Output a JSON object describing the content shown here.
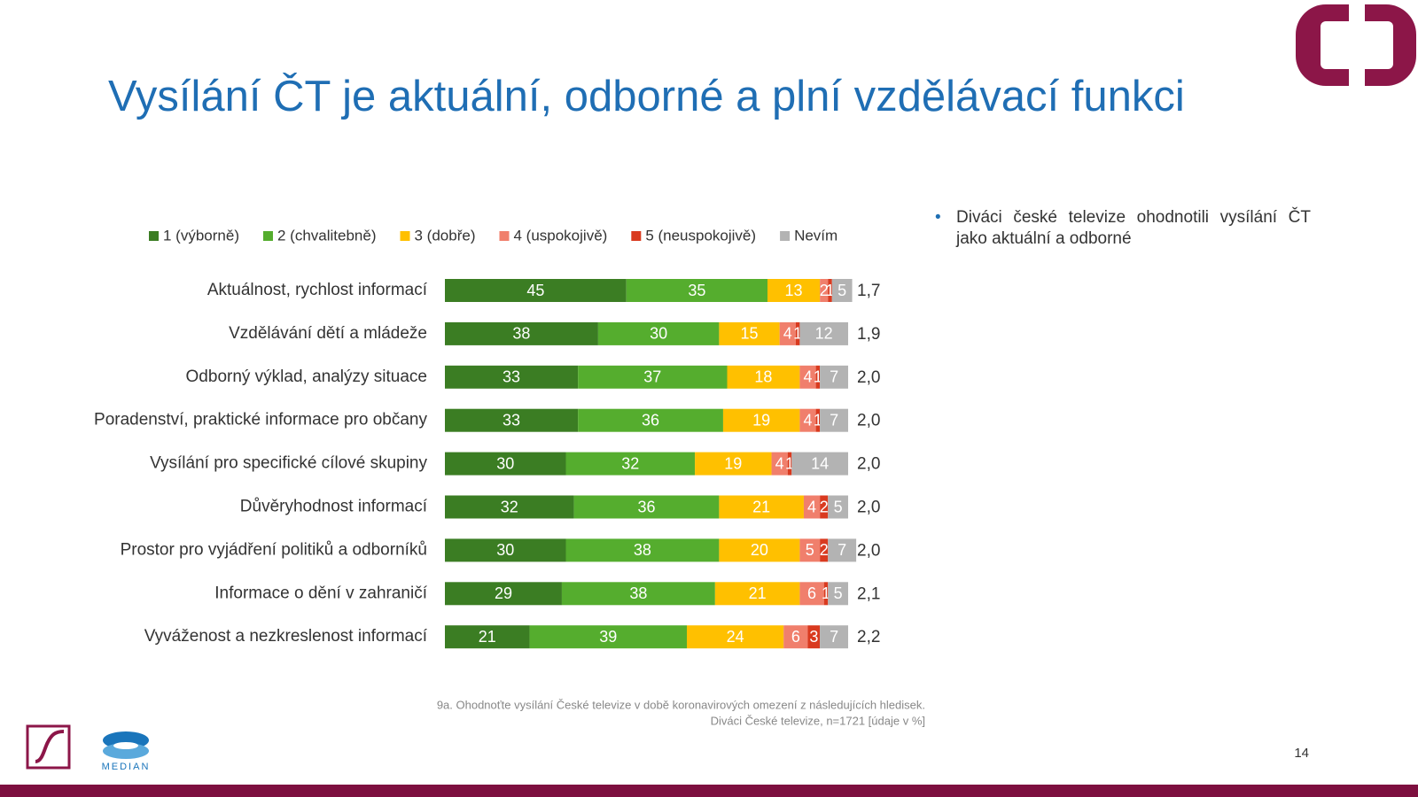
{
  "chart_data": {
    "type": "stacked-bar",
    "orientation": "horizontal",
    "title": "Vysílání ČT je aktuální, odborné a plní vzdělávací funkci",
    "categories": [
      "Aktuálnost, rychlost informací",
      "Vzdělávání dětí a mládeže",
      "Odborný výklad, analýzy situace",
      "Poradenství, praktické informace pro občany",
      "Vysílání pro specifické cílové skupiny",
      "Důvěryhodnost informací",
      "Prostor pro vyjádření politiků a odborníků",
      "Informace o dění v zahraničí",
      "Vyváženost a nezkreslenost informací"
    ],
    "series": [
      {
        "name": "1 (výborně)",
        "color": "#3b7d23",
        "values": [
          45,
          38,
          33,
          33,
          30,
          32,
          30,
          29,
          21
        ]
      },
      {
        "name": "2 (chvalitebně)",
        "color": "#55ad2e",
        "values": [
          35,
          30,
          37,
          36,
          32,
          36,
          38,
          38,
          39
        ]
      },
      {
        "name": "3 (dobře)",
        "color": "#ffc000",
        "values": [
          13,
          15,
          18,
          19,
          19,
          21,
          20,
          21,
          24
        ]
      },
      {
        "name": "4 (uspokojivě)",
        "color": "#f07f6c",
        "values": [
          2,
          4,
          4,
          4,
          4,
          4,
          5,
          6,
          6
        ]
      },
      {
        "name": "5 (neuspokojivě)",
        "color": "#d93a1f",
        "values": [
          1,
          1,
          1,
          1,
          1,
          2,
          2,
          1,
          3
        ]
      },
      {
        "name": "Nevím",
        "color": "#b3b3b3",
        "values": [
          5,
          12,
          7,
          7,
          14,
          5,
          7,
          5,
          7
        ]
      }
    ],
    "averages": {
      "values": [
        1.7,
        1.9,
        2.0,
        2.0,
        2.0,
        2.0,
        2.0,
        2.1,
        2.2
      ],
      "value_labels": [
        "1,7",
        "1,9",
        "2,0",
        "2,0",
        "2,0",
        "2,0",
        "2,0",
        "2,1",
        "2,2"
      ]
    },
    "xlim": [
      0,
      100
    ],
    "legend": "top"
  },
  "slide": {
    "bullet": "Diváci české televize ohodnotili vysílání ČT jako aktuální a odborné",
    "footnote": [
      "9a. Ohodnoťte vysílání České televize v době koronavirových omezení z následujících hledisek.",
      "Diváci České televize, n=1721  [údaje v %]"
    ],
    "page_number": "14",
    "logo_text": "MEDIAN"
  }
}
